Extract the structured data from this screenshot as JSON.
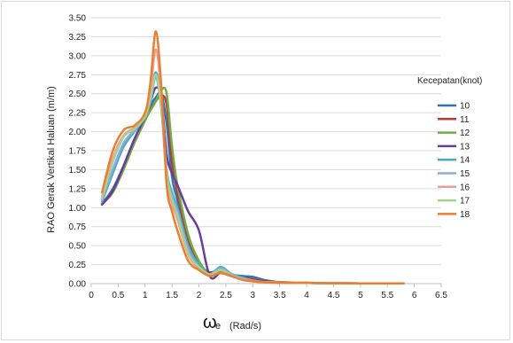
{
  "chart_data": {
    "type": "line",
    "ylabel": "RAO Gerak Vertikal Haluan (m/m)",
    "xlabel_symbol": "ω",
    "xlabel_sub": "e",
    "xlabel_units": "(Rad/s)",
    "legend_title": "Kecepatan(knot)",
    "legend_placement": "right",
    "xlim": [
      0,
      6.5
    ],
    "ylim": [
      0,
      3.5
    ],
    "x_ticks": [
      "0",
      "0.5",
      "1",
      "1.5",
      "2",
      "2.5",
      "3",
      "3.5",
      "4",
      "4.5",
      "5",
      "5.5",
      "6",
      "6.5"
    ],
    "y_ticks": [
      "0.00",
      "0.25",
      "0.50",
      "0.75",
      "1.00",
      "1.25",
      "1.50",
      "1.75",
      "2.00",
      "2.25",
      "2.50",
      "2.75",
      "3.00",
      "3.25",
      "3.50"
    ],
    "grid": "y-major",
    "x": [
      0.2,
      0.4,
      0.6,
      0.8,
      1.0,
      1.1,
      1.2,
      1.3,
      1.4,
      1.5,
      1.6,
      1.8,
      2.0,
      2.2,
      2.4,
      2.6,
      2.8,
      3.0,
      3.2,
      3.5,
      4.0,
      4.5,
      5.0,
      5.8
    ],
    "series": [
      {
        "name": "10",
        "color": "#2e75b6",
        "values": [
          1.05,
          1.25,
          1.55,
          1.9,
          2.2,
          2.35,
          2.45,
          2.5,
          2.1,
          1.4,
          1.1,
          0.55,
          0.25,
          0.15,
          0.18,
          0.12,
          0.1,
          0.09,
          0.05,
          0.02,
          0.01,
          0.005,
          0.004,
          0.003
        ]
      },
      {
        "name": "11",
        "color": "#c0392b",
        "values": [
          1.05,
          1.22,
          1.52,
          1.85,
          2.15,
          2.3,
          2.4,
          2.48,
          2.35,
          1.6,
          1.2,
          0.6,
          0.28,
          0.14,
          0.16,
          0.11,
          0.08,
          0.06,
          0.03,
          0.02,
          0.01,
          0.005,
          0.004,
          0.003
        ]
      },
      {
        "name": "12",
        "color": "#70ad47",
        "values": [
          1.05,
          1.2,
          1.5,
          1.85,
          2.15,
          2.28,
          2.4,
          2.55,
          2.5,
          1.8,
          1.3,
          0.65,
          0.3,
          0.12,
          0.15,
          0.1,
          0.07,
          0.04,
          0.02,
          0.015,
          0.01,
          0.005,
          0.004,
          0.003
        ]
      },
      {
        "name": "13",
        "color": "#6a3d9a",
        "values": [
          1.04,
          1.22,
          1.55,
          1.9,
          2.2,
          2.4,
          2.58,
          2.45,
          1.7,
          1.45,
          1.3,
          0.95,
          0.7,
          0.1,
          0.14,
          0.1,
          0.06,
          0.03,
          0.02,
          0.015,
          0.01,
          0.005,
          0.004,
          0.003
        ]
      },
      {
        "name": "14",
        "color": "#4bacc6",
        "values": [
          1.08,
          1.45,
          1.8,
          2.0,
          2.2,
          2.45,
          2.78,
          2.4,
          1.5,
          1.2,
          1.0,
          0.5,
          0.25,
          0.12,
          0.22,
          0.13,
          0.08,
          0.04,
          0.02,
          0.015,
          0.01,
          0.005,
          0.004,
          0.003
        ]
      },
      {
        "name": "15",
        "color": "#8eaadb",
        "values": [
          1.1,
          1.5,
          1.85,
          2.02,
          2.2,
          2.4,
          2.72,
          2.3,
          1.45,
          1.15,
          0.95,
          0.45,
          0.22,
          0.12,
          0.2,
          0.12,
          0.07,
          0.04,
          0.02,
          0.015,
          0.01,
          0.005,
          0.004,
          0.003
        ]
      },
      {
        "name": "16",
        "color": "#e6a09a",
        "values": [
          1.15,
          1.65,
          1.95,
          2.05,
          2.22,
          2.55,
          3.08,
          2.5,
          1.4,
          1.05,
          0.85,
          0.38,
          0.2,
          0.12,
          0.18,
          0.11,
          0.06,
          0.03,
          0.02,
          0.015,
          0.01,
          0.005,
          0.004,
          0.003
        ]
      },
      {
        "name": "17",
        "color": "#a9d18e",
        "values": [
          1.12,
          1.6,
          1.93,
          2.03,
          2.2,
          2.45,
          2.75,
          2.35,
          1.45,
          1.1,
          0.9,
          0.4,
          0.22,
          0.12,
          0.18,
          0.11,
          0.06,
          0.03,
          0.02,
          0.015,
          0.01,
          0.005,
          0.004,
          0.003
        ]
      },
      {
        "name": "18",
        "color": "#ed7d31",
        "values": [
          1.2,
          1.75,
          2.02,
          2.08,
          2.25,
          2.65,
          3.32,
          2.6,
          1.3,
          0.95,
          0.7,
          0.3,
          0.18,
          0.1,
          0.14,
          0.1,
          0.05,
          0.03,
          0.02,
          0.01,
          0.01,
          0.005,
          0.004,
          0.003
        ]
      }
    ]
  }
}
